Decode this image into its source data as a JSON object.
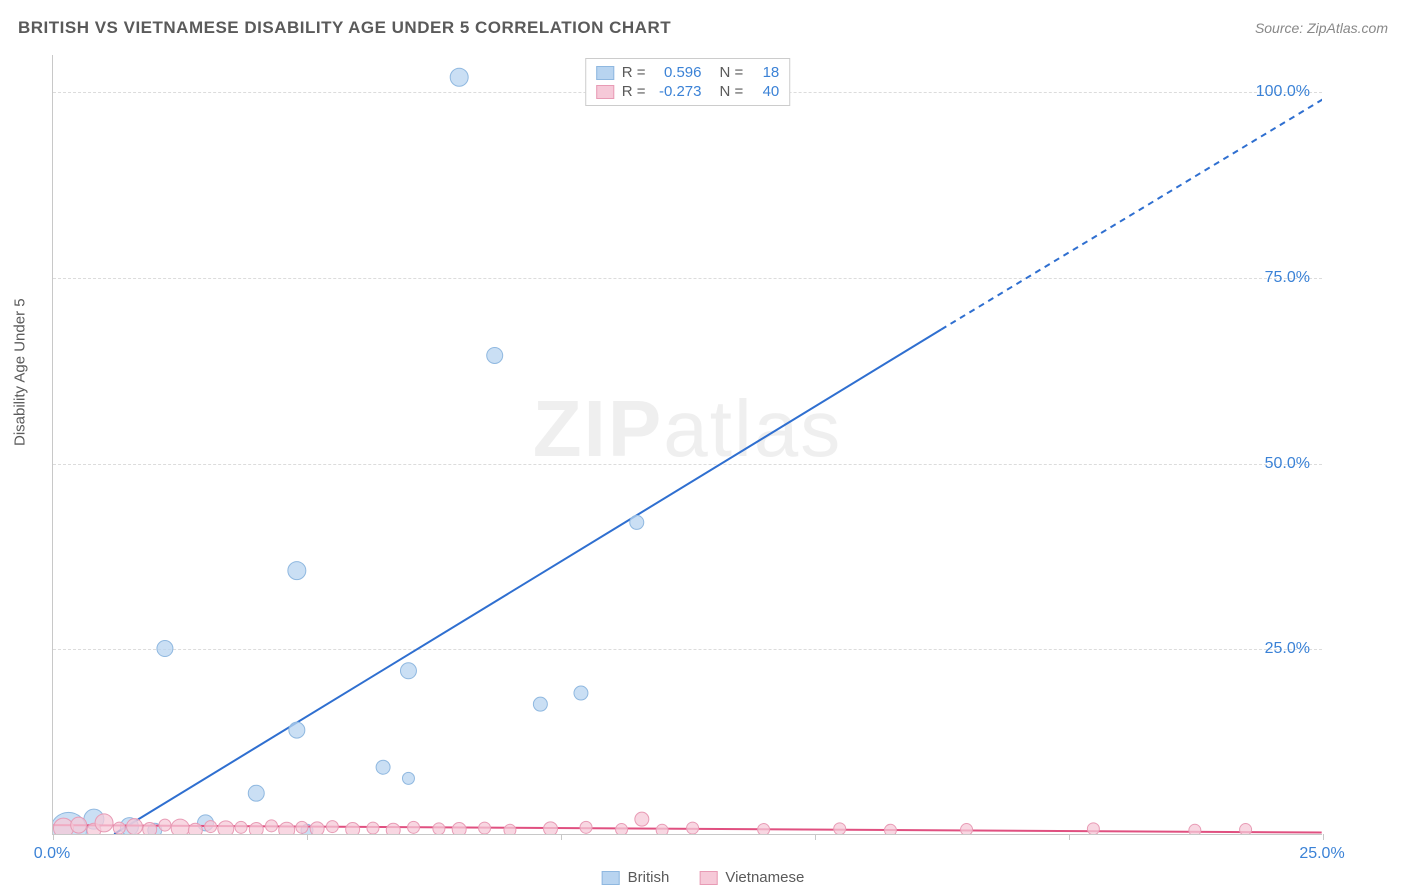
{
  "title": "BRITISH VS VIETNAMESE DISABILITY AGE UNDER 5 CORRELATION CHART",
  "source_label": "Source: ZipAtlas.com",
  "watermark": {
    "bold": "ZIP",
    "light": "atlas"
  },
  "y_axis_label": "Disability Age Under 5",
  "chart": {
    "type": "scatter-correlation",
    "background_color": "#ffffff",
    "grid_color": "#dcdcdc",
    "axis_color": "#c8c8c8",
    "text_color": "#5a5a5a",
    "value_color": "#3b82d6",
    "xlim": [
      0,
      25
    ],
    "ylim": [
      0,
      105
    ],
    "x_ticks": [
      0,
      5,
      10,
      15,
      20,
      25
    ],
    "y_ticks": [
      25,
      50,
      75,
      100
    ],
    "x_tick_labels": {
      "0": "0.0%",
      "25": "25.0%"
    },
    "y_tick_labels": {
      "25": "25.0%",
      "50": "50.0%",
      "75": "75.0%",
      "100": "100.0%"
    },
    "title_fontsize": 17,
    "label_fontsize": 15,
    "tick_fontsize": 16,
    "series": [
      {
        "name": "British",
        "color_fill": "#b8d4f0",
        "color_stroke": "#8fb8e0",
        "line_color": "#2f6fd0",
        "r_value": "0.596",
        "n_value": "18",
        "trend": {
          "x1": 1.2,
          "y1": 0,
          "x2": 17.5,
          "y2": 68,
          "x2_dash": 25.5,
          "y2_dash": 101
        },
        "points": [
          {
            "x": 8.0,
            "y": 102,
            "r": 9
          },
          {
            "x": 8.7,
            "y": 64.5,
            "r": 8
          },
          {
            "x": 11.5,
            "y": 42,
            "r": 7
          },
          {
            "x": 4.8,
            "y": 35.5,
            "r": 9
          },
          {
            "x": 2.2,
            "y": 25,
            "r": 8
          },
          {
            "x": 7.0,
            "y": 22,
            "r": 8
          },
          {
            "x": 10.4,
            "y": 19,
            "r": 7
          },
          {
            "x": 9.6,
            "y": 17.5,
            "r": 7
          },
          {
            "x": 4.8,
            "y": 14,
            "r": 8
          },
          {
            "x": 6.5,
            "y": 9,
            "r": 7
          },
          {
            "x": 7.0,
            "y": 7.5,
            "r": 6
          },
          {
            "x": 4.0,
            "y": 5.5,
            "r": 8
          },
          {
            "x": 0.8,
            "y": 2,
            "r": 10
          },
          {
            "x": 3.0,
            "y": 1.5,
            "r": 8
          },
          {
            "x": 1.5,
            "y": 1,
            "r": 9
          },
          {
            "x": 0.3,
            "y": 0.5,
            "r": 18
          },
          {
            "x": 2.0,
            "y": 0.5,
            "r": 7
          },
          {
            "x": 5.0,
            "y": 0.5,
            "r": 6
          }
        ]
      },
      {
        "name": "Vietnamese",
        "color_fill": "#f6c9d8",
        "color_stroke": "#e89bb5",
        "line_color": "#e05080",
        "r_value": "-0.273",
        "n_value": "40",
        "trend": {
          "x1": 0,
          "y1": 1.2,
          "x2": 25,
          "y2": 0.2,
          "x2_dash": 25,
          "y2_dash": 0.2
        },
        "points": [
          {
            "x": 0.2,
            "y": 0.8,
            "r": 10
          },
          {
            "x": 0.5,
            "y": 1.2,
            "r": 8
          },
          {
            "x": 0.8,
            "y": 0.5,
            "r": 7
          },
          {
            "x": 1.0,
            "y": 1.5,
            "r": 9
          },
          {
            "x": 1.3,
            "y": 0.8,
            "r": 6
          },
          {
            "x": 1.6,
            "y": 1.0,
            "r": 8
          },
          {
            "x": 1.9,
            "y": 0.6,
            "r": 7
          },
          {
            "x": 2.2,
            "y": 1.2,
            "r": 6
          },
          {
            "x": 2.5,
            "y": 0.8,
            "r": 9
          },
          {
            "x": 2.8,
            "y": 0.5,
            "r": 7
          },
          {
            "x": 3.1,
            "y": 1.0,
            "r": 6
          },
          {
            "x": 3.4,
            "y": 0.7,
            "r": 8
          },
          {
            "x": 3.7,
            "y": 0.9,
            "r": 6
          },
          {
            "x": 4.0,
            "y": 0.6,
            "r": 7
          },
          {
            "x": 4.3,
            "y": 1.1,
            "r": 6
          },
          {
            "x": 4.6,
            "y": 0.5,
            "r": 8
          },
          {
            "x": 4.9,
            "y": 0.9,
            "r": 6
          },
          {
            "x": 5.2,
            "y": 0.7,
            "r": 7
          },
          {
            "x": 5.5,
            "y": 1.0,
            "r": 6
          },
          {
            "x": 5.9,
            "y": 0.6,
            "r": 7
          },
          {
            "x": 6.3,
            "y": 0.8,
            "r": 6
          },
          {
            "x": 6.7,
            "y": 0.5,
            "r": 7
          },
          {
            "x": 7.1,
            "y": 0.9,
            "r": 6
          },
          {
            "x": 7.6,
            "y": 0.7,
            "r": 6
          },
          {
            "x": 8.0,
            "y": 0.6,
            "r": 7
          },
          {
            "x": 8.5,
            "y": 0.8,
            "r": 6
          },
          {
            "x": 9.0,
            "y": 0.5,
            "r": 6
          },
          {
            "x": 9.8,
            "y": 0.7,
            "r": 7
          },
          {
            "x": 10.5,
            "y": 0.9,
            "r": 6
          },
          {
            "x": 11.2,
            "y": 0.6,
            "r": 6
          },
          {
            "x": 11.6,
            "y": 2.0,
            "r": 7
          },
          {
            "x": 12.0,
            "y": 0.5,
            "r": 6
          },
          {
            "x": 12.6,
            "y": 0.8,
            "r": 6
          },
          {
            "x": 14.0,
            "y": 0.6,
            "r": 6
          },
          {
            "x": 15.5,
            "y": 0.7,
            "r": 6
          },
          {
            "x": 16.5,
            "y": 0.5,
            "r": 6
          },
          {
            "x": 18.0,
            "y": 0.6,
            "r": 6
          },
          {
            "x": 20.5,
            "y": 0.7,
            "r": 6
          },
          {
            "x": 22.5,
            "y": 0.5,
            "r": 6
          },
          {
            "x": 23.5,
            "y": 0.6,
            "r": 6
          }
        ]
      }
    ]
  },
  "legend_bottom": [
    {
      "label": "British",
      "fill": "#b8d4f0",
      "stroke": "#8fb8e0"
    },
    {
      "label": "Vietnamese",
      "fill": "#f6c9d8",
      "stroke": "#e89bb5"
    }
  ]
}
